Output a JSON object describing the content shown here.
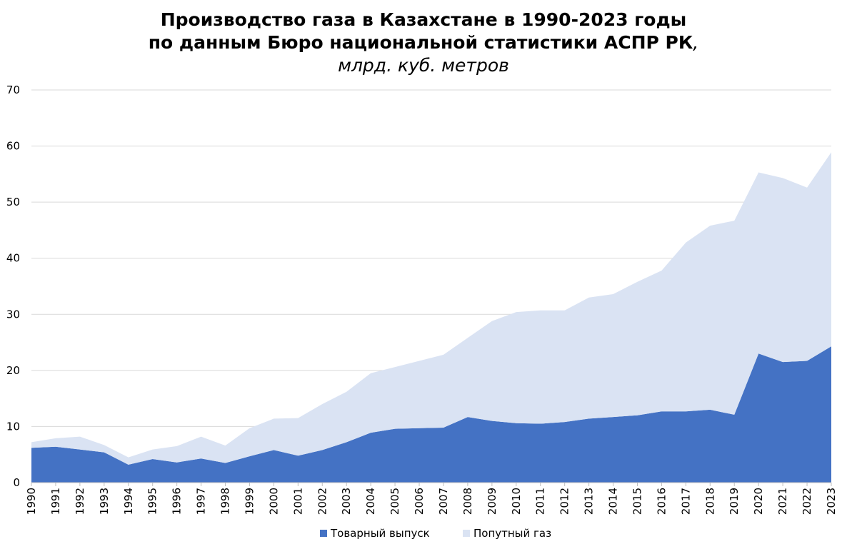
{
  "title": {
    "line1": "Производство газа в Казахстане в 1990-2023 годы",
    "line2": "по данным Бюро национальной статистики АСПР РК",
    "line2_suffix": ",",
    "subtitle": "млрд. куб. метров"
  },
  "colors": {
    "series1": "#4472C4",
    "series2": "#DAE3F3",
    "grid": "#D9D9D9",
    "axis": "#BFBFBF"
  },
  "chart_data": {
    "type": "area",
    "stacked": true,
    "grid": true,
    "legend_position": "bottom",
    "ylim": [
      0,
      70
    ],
    "yticks": [
      0,
      10,
      20,
      30,
      40,
      50,
      60,
      70
    ],
    "x": [
      "1990",
      "1991",
      "1992",
      "1993",
      "1994",
      "1995",
      "1996",
      "1997",
      "1998",
      "1999",
      "2000",
      "2001",
      "2002",
      "2003",
      "2004",
      "2005",
      "2006",
      "2007",
      "2008",
      "2009",
      "2010",
      "2011",
      "2012",
      "2013",
      "2014",
      "2015",
      "2016",
      "2017",
      "2018",
      "2019",
      "2020",
      "2021",
      "2022",
      "2023"
    ],
    "series": [
      {
        "name": "Товарный выпуск",
        "color": "#4472C4",
        "values": [
          6.2,
          6.4,
          5.9,
          5.4,
          3.2,
          4.2,
          3.6,
          4.3,
          3.5,
          4.7,
          5.8,
          4.8,
          5.8,
          7.2,
          8.9,
          9.6,
          9.7,
          9.8,
          11.7,
          11.0,
          10.6,
          10.5,
          10.8,
          11.4,
          11.7,
          12.0,
          12.7,
          12.7,
          13.0,
          12.1,
          23.0,
          21.5,
          21.7,
          24.3
        ]
      },
      {
        "name": "Попутный газ",
        "color": "#DAE3F3",
        "values": [
          1.0,
          1.5,
          2.3,
          1.3,
          1.3,
          1.7,
          2.9,
          3.9,
          3.1,
          5.0,
          5.6,
          6.7,
          8.2,
          9.0,
          10.6,
          11.0,
          12.0,
          13.0,
          14.1,
          17.8,
          19.8,
          20.2,
          19.9,
          21.6,
          21.9,
          23.8,
          25.1,
          30.1,
          32.8,
          34.6,
          32.3,
          32.8,
          30.9,
          34.6
        ]
      }
    ]
  }
}
